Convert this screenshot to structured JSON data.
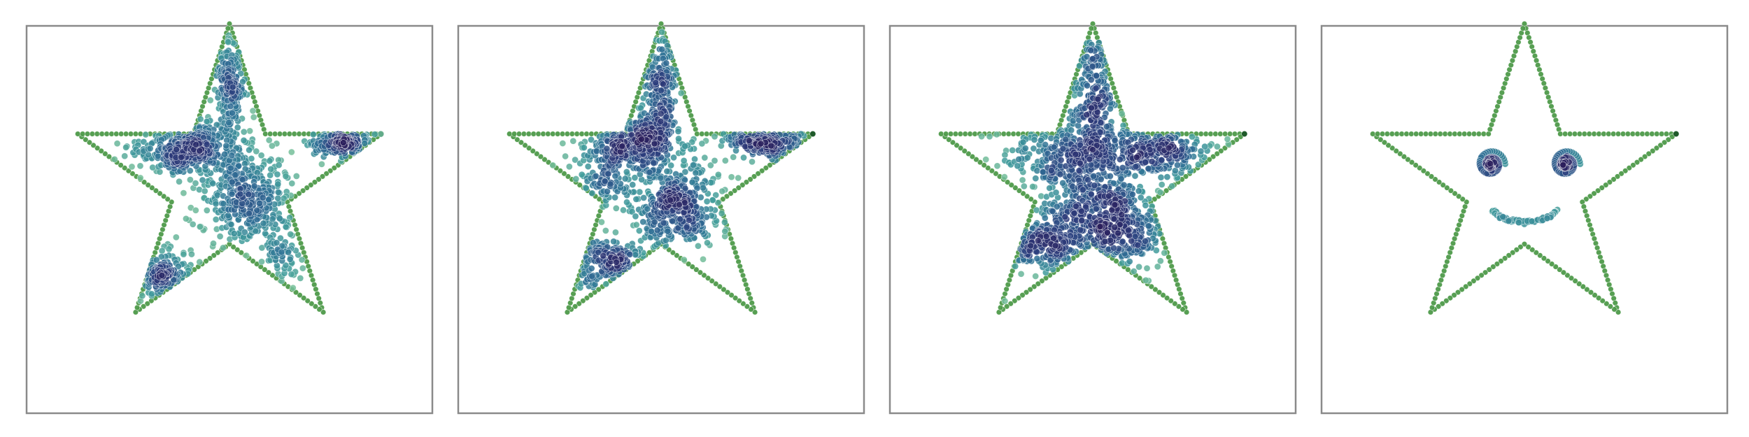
{
  "figure": {
    "background": "#ffffff",
    "frame_color": "#8a8a8a"
  },
  "chart_data": [
    {
      "type": "scatter",
      "panel": 1,
      "title": "",
      "xlabel": "",
      "ylabel": "",
      "axis_ticks": false,
      "grid": false,
      "xlim": [
        -1.3,
        1.3
      ],
      "ylim": [
        -1.3,
        1.3
      ],
      "outline_color": "#4e9a4a",
      "point_colormap": [
        "#7fc59a",
        "#3f9a9b",
        "#2f6f95",
        "#2d3f7e",
        "#2b1f5c"
      ],
      "outline": {
        "vertices": [
          [
            0,
            1.0
          ],
          [
            0.225,
            0.309
          ],
          [
            0.951,
            0.309
          ],
          [
            0.363,
            -0.118
          ],
          [
            0.588,
            -0.809
          ],
          [
            0,
            -0.382
          ],
          [
            -0.588,
            -0.809
          ],
          [
            -0.363,
            -0.118
          ],
          [
            -0.951,
            0.309
          ],
          [
            -0.225,
            0.309
          ]
        ],
        "points_per_edge": 24
      },
      "clusters": [
        {
          "center": [
            -0.28,
            0.22
          ],
          "spread": [
            0.16,
            0.08
          ],
          "count": 360
        },
        {
          "center": [
            0.72,
            0.27
          ],
          "spread": [
            0.12,
            0.05
          ],
          "count": 170
        },
        {
          "center": [
            0.1,
            -0.1
          ],
          "spread": [
            0.15,
            0.15
          ],
          "count": 400
        },
        {
          "center": [
            -0.43,
            -0.58
          ],
          "spread": [
            0.1,
            0.07
          ],
          "count": 150
        },
        {
          "center": [
            0.0,
            0.6
          ],
          "spread": [
            0.05,
            0.22
          ],
          "count": 200
        },
        {
          "center": [
            0.35,
            -0.45
          ],
          "spread": [
            0.06,
            0.12
          ],
          "count": 60
        }
      ]
    },
    {
      "type": "scatter",
      "panel": 2,
      "title": "",
      "xlabel": "",
      "ylabel": "",
      "axis_ticks": false,
      "grid": false,
      "xlim": [
        -1.3,
        1.3
      ],
      "ylim": [
        -1.3,
        1.3
      ],
      "outline_color": "#4e9a4a",
      "point_colormap": [
        "#7fc59a",
        "#3f9a9b",
        "#2f6f95",
        "#2d3f7e",
        "#2b1f5c"
      ],
      "outline": {
        "vertices": [
          [
            0,
            1.0
          ],
          [
            0.225,
            0.309
          ],
          [
            0.951,
            0.309
          ],
          [
            0.363,
            -0.118
          ],
          [
            0.588,
            -0.809
          ],
          [
            0,
            -0.382
          ],
          [
            -0.588,
            -0.809
          ],
          [
            -0.363,
            -0.118
          ],
          [
            -0.951,
            0.309
          ],
          [
            -0.225,
            0.309
          ]
        ],
        "points_per_edge": 24
      },
      "clusters": [
        {
          "center": [
            -0.18,
            0.24
          ],
          "spread": [
            0.16,
            0.09
          ],
          "count": 320
        },
        {
          "center": [
            0.68,
            0.27
          ],
          "spread": [
            0.14,
            0.06
          ],
          "count": 180
        },
        {
          "center": [
            0.1,
            -0.15
          ],
          "spread": [
            0.14,
            0.13
          ],
          "count": 380
        },
        {
          "center": [
            -0.35,
            -0.5
          ],
          "spread": [
            0.14,
            0.09
          ],
          "count": 180
        },
        {
          "center": [
            0.0,
            0.55
          ],
          "spread": [
            0.06,
            0.22
          ],
          "count": 230
        },
        {
          "center": [
            -0.35,
            0.0
          ],
          "spread": [
            0.1,
            0.08
          ],
          "count": 90
        }
      ]
    },
    {
      "type": "scatter",
      "panel": 3,
      "title": "",
      "xlabel": "",
      "ylabel": "",
      "axis_ticks": false,
      "grid": false,
      "xlim": [
        -1.3,
        1.3
      ],
      "ylim": [
        -1.3,
        1.3
      ],
      "outline_color": "#4e9a4a",
      "point_colormap": [
        "#7fc59a",
        "#3f9a9b",
        "#2f6f95",
        "#2d3f7e",
        "#2b1f5c"
      ],
      "outline": {
        "vertices": [
          [
            0,
            1.0
          ],
          [
            0.225,
            0.309
          ],
          [
            0.951,
            0.309
          ],
          [
            0.363,
            -0.118
          ],
          [
            0.588,
            -0.809
          ],
          [
            0,
            -0.382
          ],
          [
            -0.588,
            -0.809
          ],
          [
            -0.363,
            -0.118
          ],
          [
            -0.951,
            0.309
          ],
          [
            -0.225,
            0.309
          ]
        ],
        "points_per_edge": 24
      },
      "clusters": [
        {
          "center": [
            -0.15,
            0.18
          ],
          "spread": [
            0.22,
            0.12
          ],
          "count": 330
        },
        {
          "center": [
            0.4,
            0.2
          ],
          "spread": [
            0.18,
            0.08
          ],
          "count": 260
        },
        {
          "center": [
            0.05,
            -0.2
          ],
          "spread": [
            0.18,
            0.14
          ],
          "count": 400
        },
        {
          "center": [
            -0.3,
            -0.35
          ],
          "spread": [
            0.16,
            0.12
          ],
          "count": 220
        },
        {
          "center": [
            0.0,
            0.55
          ],
          "spread": [
            0.08,
            0.22
          ],
          "count": 240
        },
        {
          "center": [
            0.25,
            -0.35
          ],
          "spread": [
            0.12,
            0.12
          ],
          "count": 120
        }
      ]
    },
    {
      "type": "scatter",
      "panel": 4,
      "title": "",
      "xlabel": "",
      "ylabel": "",
      "axis_ticks": false,
      "grid": false,
      "xlim": [
        -1.3,
        1.3
      ],
      "ylim": [
        -1.3,
        1.3
      ],
      "outline_color": "#4e9a4a",
      "point_colormap": [
        "#7fc59a",
        "#3f9a9b",
        "#2f6f95",
        "#2d3f7e",
        "#2b1f5c"
      ],
      "outline": {
        "vertices": [
          [
            0,
            1.0
          ],
          [
            0.225,
            0.309
          ],
          [
            0.951,
            0.309
          ],
          [
            0.363,
            -0.118
          ],
          [
            0.588,
            -0.809
          ],
          [
            0,
            -0.382
          ],
          [
            -0.588,
            -0.809
          ],
          [
            -0.363,
            -0.118
          ],
          [
            -0.951,
            0.309
          ],
          [
            -0.225,
            0.309
          ]
        ],
        "points_per_edge": 24
      },
      "features": {
        "eyes": [
          {
            "center": [
              -0.21,
              0.12
            ],
            "spiral_radius": 0.09,
            "count": 70
          },
          {
            "center": [
              0.26,
              0.12
            ],
            "spiral_radius": 0.09,
            "count": 70
          }
        ],
        "smile": {
          "center": [
            0.0,
            -0.12
          ],
          "radius": 0.22,
          "angle_range_deg": [
            205,
            335
          ],
          "count": 60
        }
      }
    }
  ]
}
